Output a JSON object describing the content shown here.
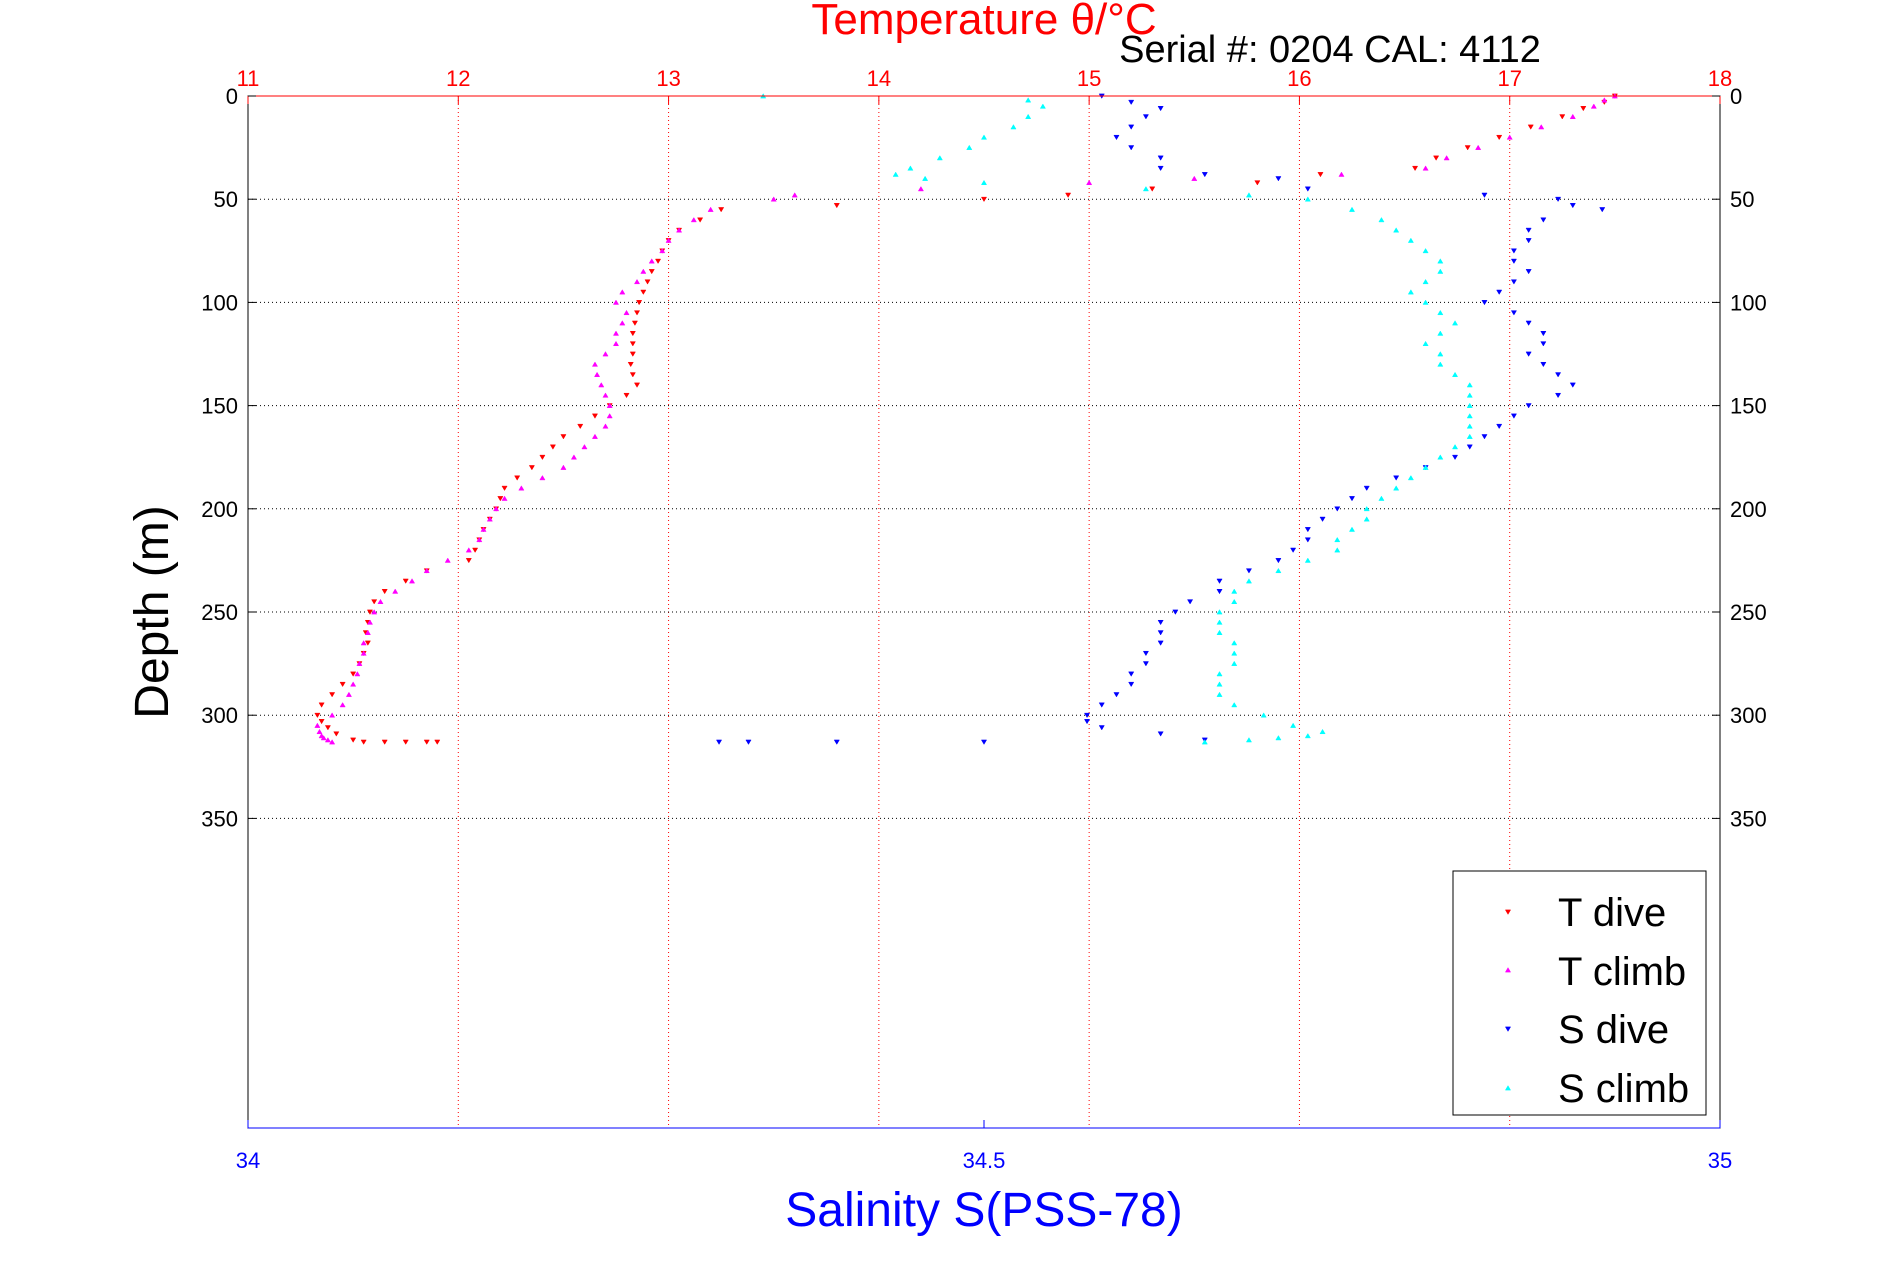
{
  "chart_data": {
    "type": "scatter",
    "title": "Temperature θ/°C",
    "subtitle": "Serial #: 0204  CAL: 4112",
    "xlabel": "Salinity S(PSS-78)",
    "ylabel": "Depth (m)",
    "temperature_axis": {
      "range": [
        11,
        18
      ],
      "ticks": [
        "11",
        "12",
        "13",
        "14",
        "15",
        "16",
        "17",
        "18"
      ],
      "color": "#ff0000"
    },
    "salinity_axis": {
      "range": [
        34,
        35
      ],
      "ticks": [
        "34",
        "34.5",
        "35"
      ],
      "color": "#0000ff"
    },
    "depth_axis": {
      "range": [
        0,
        500
      ],
      "reversed": true,
      "ticks": [
        "0",
        "50",
        "100",
        "150",
        "200",
        "250",
        "300",
        "350"
      ]
    },
    "grid": true,
    "legend_position": "bottom-right",
    "series": [
      {
        "name": "T dive",
        "color": "#ff0000",
        "marker": "triangle-down",
        "axis": "temperature",
        "depth": [
          0,
          3,
          6,
          10,
          15,
          20,
          25,
          30,
          35,
          38,
          42,
          45,
          48,
          50,
          53,
          55,
          60,
          65,
          70,
          75,
          80,
          85,
          90,
          95,
          100,
          105,
          110,
          115,
          120,
          125,
          130,
          135,
          140,
          145,
          150,
          155,
          160,
          165,
          170,
          175,
          180,
          185,
          190,
          195,
          200,
          205,
          210,
          215,
          220,
          225,
          230,
          235,
          240,
          245,
          250,
          255,
          260,
          265,
          270,
          275,
          280,
          285,
          290,
          295,
          300,
          303,
          306,
          309,
          312,
          313,
          313,
          313,
          313,
          313
        ],
        "values": [
          17.5,
          17.45,
          17.35,
          17.25,
          17.1,
          16.95,
          16.8,
          16.65,
          16.55,
          16.1,
          15.8,
          15.3,
          14.9,
          14.5,
          13.8,
          13.25,
          13.15,
          13.05,
          13.0,
          12.97,
          12.95,
          12.92,
          12.9,
          12.88,
          12.86,
          12.85,
          12.84,
          12.83,
          12.83,
          12.83,
          12.82,
          12.83,
          12.85,
          12.8,
          12.72,
          12.65,
          12.58,
          12.5,
          12.45,
          12.4,
          12.35,
          12.28,
          12.22,
          12.2,
          12.18,
          12.15,
          12.12,
          12.1,
          12.08,
          12.05,
          11.85,
          11.75,
          11.65,
          11.6,
          11.58,
          11.57,
          11.56,
          11.57,
          11.55,
          11.53,
          11.5,
          11.45,
          11.4,
          11.35,
          11.33,
          11.35,
          11.38,
          11.42,
          11.5,
          11.55,
          11.65,
          11.75,
          11.85,
          11.9
        ]
      },
      {
        "name": "T climb",
        "color": "#ff00ff",
        "marker": "triangle-up",
        "axis": "temperature",
        "depth": [
          313,
          312,
          311,
          310,
          308,
          305,
          300,
          295,
          290,
          285,
          280,
          275,
          270,
          265,
          260,
          255,
          250,
          245,
          240,
          235,
          230,
          225,
          220,
          215,
          210,
          205,
          200,
          195,
          190,
          185,
          180,
          175,
          170,
          165,
          160,
          155,
          150,
          145,
          140,
          135,
          130,
          125,
          120,
          115,
          110,
          105,
          100,
          95,
          90,
          85,
          80,
          75,
          70,
          65,
          60,
          55,
          50,
          48,
          45,
          42,
          40,
          38,
          35,
          30,
          25,
          20,
          15,
          10,
          5,
          2,
          0
        ],
        "values": [
          11.4,
          11.38,
          11.36,
          11.35,
          11.34,
          11.33,
          11.4,
          11.45,
          11.48,
          11.5,
          11.52,
          11.53,
          11.55,
          11.55,
          11.57,
          11.58,
          11.6,
          11.63,
          11.7,
          11.78,
          11.85,
          11.95,
          12.05,
          12.1,
          12.12,
          12.15,
          12.18,
          12.22,
          12.3,
          12.4,
          12.5,
          12.55,
          12.6,
          12.65,
          12.7,
          12.72,
          12.72,
          12.7,
          12.68,
          12.66,
          12.65,
          12.7,
          12.75,
          12.75,
          12.78,
          12.8,
          12.75,
          12.78,
          12.85,
          12.88,
          12.92,
          12.97,
          13.0,
          13.05,
          13.12,
          13.2,
          13.5,
          13.6,
          14.2,
          15.0,
          15.5,
          16.2,
          16.6,
          16.7,
          16.85,
          17.0,
          17.15,
          17.3,
          17.4,
          17.45,
          17.5
        ]
      },
      {
        "name": "S dive",
        "color": "#0000ff",
        "marker": "triangle-down",
        "axis": "salinity",
        "depth": [
          0,
          3,
          6,
          10,
          15,
          20,
          25,
          30,
          35,
          38,
          40,
          45,
          48,
          50,
          53,
          55,
          60,
          65,
          70,
          75,
          80,
          85,
          90,
          95,
          100,
          105,
          110,
          115,
          120,
          125,
          130,
          135,
          140,
          145,
          150,
          155,
          160,
          165,
          170,
          175,
          180,
          185,
          190,
          195,
          200,
          205,
          210,
          215,
          220,
          225,
          230,
          235,
          240,
          245,
          250,
          255,
          260,
          265,
          270,
          275,
          280,
          285,
          290,
          295,
          300,
          303,
          306,
          309,
          312,
          313,
          313,
          313,
          313
        ],
        "values": [
          34.58,
          34.6,
          34.62,
          34.61,
          34.6,
          34.59,
          34.6,
          34.62,
          34.62,
          34.65,
          34.7,
          34.72,
          34.84,
          34.89,
          34.9,
          34.92,
          34.88,
          34.87,
          34.87,
          34.86,
          34.86,
          34.87,
          34.86,
          34.85,
          34.84,
          34.86,
          34.87,
          34.88,
          34.88,
          34.87,
          34.88,
          34.89,
          34.9,
          34.89,
          34.87,
          34.86,
          34.85,
          34.84,
          34.83,
          34.82,
          34.8,
          34.78,
          34.76,
          34.75,
          34.74,
          34.73,
          34.72,
          34.72,
          34.71,
          34.7,
          34.68,
          34.66,
          34.66,
          34.64,
          34.63,
          34.62,
          34.62,
          34.62,
          34.61,
          34.61,
          34.6,
          34.6,
          34.59,
          34.58,
          34.57,
          34.57,
          34.58,
          34.62,
          34.65,
          34.5,
          34.4,
          34.34,
          34.32
        ]
      },
      {
        "name": "S climb",
        "color": "#00ffff",
        "marker": "triangle-up",
        "axis": "salinity",
        "depth": [
          313,
          312,
          311,
          310,
          308,
          305,
          300,
          295,
          290,
          285,
          280,
          275,
          270,
          265,
          260,
          255,
          250,
          245,
          240,
          235,
          230,
          225,
          220,
          215,
          210,
          205,
          200,
          195,
          190,
          185,
          180,
          175,
          170,
          165,
          160,
          155,
          150,
          145,
          140,
          135,
          130,
          125,
          120,
          115,
          110,
          105,
          100,
          95,
          90,
          85,
          80,
          75,
          70,
          65,
          60,
          55,
          50,
          48,
          45,
          42,
          40,
          38,
          35,
          30,
          25,
          20,
          15,
          10,
          5,
          2,
          0
        ],
        "values": [
          34.65,
          34.68,
          34.7,
          34.72,
          34.73,
          34.71,
          34.69,
          34.67,
          34.66,
          34.66,
          34.66,
          34.67,
          34.67,
          34.67,
          34.66,
          34.66,
          34.66,
          34.67,
          34.67,
          34.68,
          34.7,
          34.72,
          34.74,
          34.74,
          34.75,
          34.76,
          34.76,
          34.77,
          34.78,
          34.79,
          34.8,
          34.81,
          34.82,
          34.83,
          34.83,
          34.83,
          34.83,
          34.83,
          34.83,
          34.82,
          34.81,
          34.81,
          34.8,
          34.81,
          34.82,
          34.81,
          34.8,
          34.79,
          34.8,
          34.81,
          34.81,
          34.8,
          34.79,
          34.78,
          34.77,
          34.75,
          34.72,
          34.68,
          34.61,
          34.5,
          34.46,
          34.44,
          34.45,
          34.47,
          34.49,
          34.5,
          34.52,
          34.53,
          34.54,
          34.53,
          34.35
        ]
      }
    ]
  }
}
